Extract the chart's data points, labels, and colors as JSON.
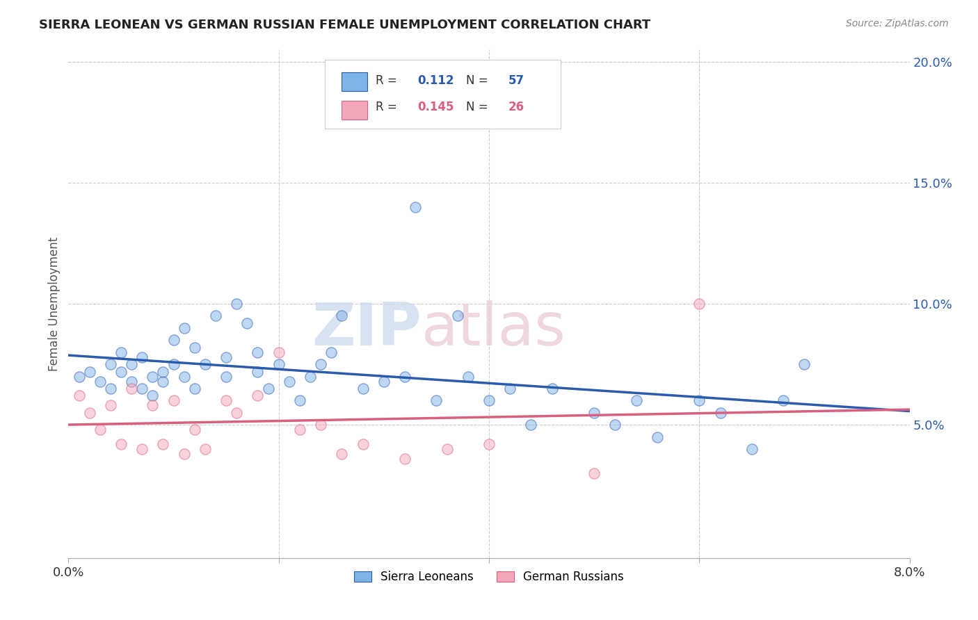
{
  "title": "SIERRA LEONEAN VS GERMAN RUSSIAN FEMALE UNEMPLOYMENT CORRELATION CHART",
  "source_text": "Source: ZipAtlas.com",
  "ylabel": "Female Unemployment",
  "xlim": [
    0.0,
    0.08
  ],
  "ylim": [
    -0.005,
    0.205
  ],
  "yticks_right": [
    0.05,
    0.1,
    0.15,
    0.2
  ],
  "yticklabels_right": [
    "5.0%",
    "10.0%",
    "15.0%",
    "20.0%"
  ],
  "blue_scatter_color": "#7EB3E8",
  "pink_scatter_color": "#F4A7B9",
  "blue_line_color": "#2B5BAD",
  "pink_line_color": "#D95F7F",
  "legend_R1": "0.112",
  "legend_N1": "57",
  "legend_R2": "0.145",
  "legend_N2": "26",
  "legend_label1": "Sierra Leoneans",
  "legend_label2": "German Russians",
  "watermark_zip": "ZIP",
  "watermark_atlas": "atlas",
  "background_color": "#FFFFFF",
  "grid_color": "#CCCCCC",
  "blue_scatter_x": [
    0.001,
    0.002,
    0.003,
    0.004,
    0.004,
    0.005,
    0.005,
    0.006,
    0.006,
    0.007,
    0.007,
    0.008,
    0.008,
    0.009,
    0.009,
    0.01,
    0.01,
    0.011,
    0.011,
    0.012,
    0.012,
    0.013,
    0.014,
    0.015,
    0.015,
    0.016,
    0.017,
    0.018,
    0.018,
    0.019,
    0.02,
    0.021,
    0.022,
    0.023,
    0.024,
    0.025,
    0.026,
    0.028,
    0.03,
    0.032,
    0.033,
    0.035,
    0.037,
    0.038,
    0.04,
    0.042,
    0.044,
    0.046,
    0.05,
    0.052,
    0.054,
    0.056,
    0.06,
    0.062,
    0.065,
    0.068,
    0.07
  ],
  "blue_scatter_y": [
    0.07,
    0.072,
    0.068,
    0.075,
    0.065,
    0.072,
    0.08,
    0.068,
    0.075,
    0.065,
    0.078,
    0.062,
    0.07,
    0.068,
    0.072,
    0.075,
    0.085,
    0.07,
    0.09,
    0.065,
    0.082,
    0.075,
    0.095,
    0.07,
    0.078,
    0.1,
    0.092,
    0.072,
    0.08,
    0.065,
    0.075,
    0.068,
    0.06,
    0.07,
    0.075,
    0.08,
    0.095,
    0.065,
    0.068,
    0.07,
    0.14,
    0.06,
    0.095,
    0.07,
    0.06,
    0.065,
    0.05,
    0.065,
    0.055,
    0.05,
    0.06,
    0.045,
    0.06,
    0.055,
    0.04,
    0.06,
    0.075
  ],
  "pink_scatter_x": [
    0.001,
    0.002,
    0.003,
    0.004,
    0.005,
    0.006,
    0.007,
    0.008,
    0.009,
    0.01,
    0.011,
    0.012,
    0.013,
    0.015,
    0.016,
    0.018,
    0.02,
    0.022,
    0.024,
    0.026,
    0.028,
    0.032,
    0.036,
    0.04,
    0.05,
    0.06
  ],
  "pink_scatter_y": [
    0.062,
    0.055,
    0.048,
    0.058,
    0.042,
    0.065,
    0.04,
    0.058,
    0.042,
    0.06,
    0.038,
    0.048,
    0.04,
    0.06,
    0.055,
    0.062,
    0.08,
    0.048,
    0.05,
    0.038,
    0.042,
    0.036,
    0.04,
    0.042,
    0.03,
    0.1
  ]
}
